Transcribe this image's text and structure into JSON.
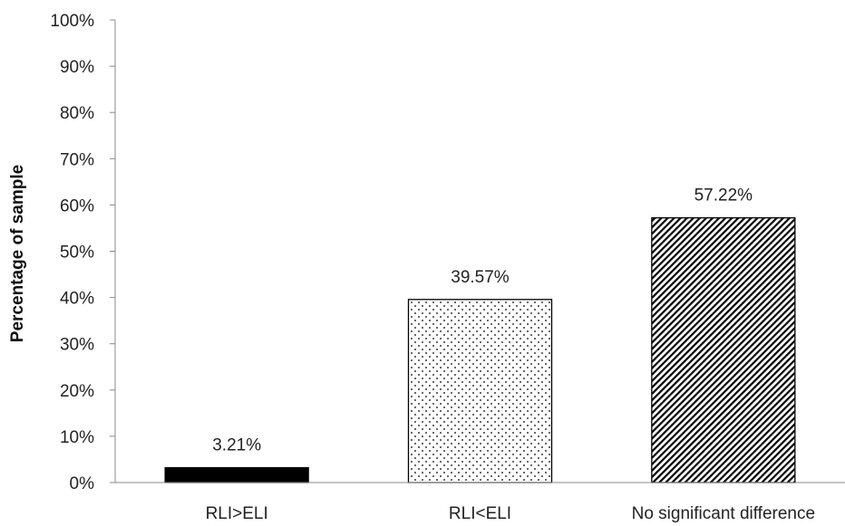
{
  "chart_data": {
    "type": "bar",
    "title": "",
    "xlabel": "",
    "ylabel": "Percentage of sample",
    "ylim": [
      0,
      100
    ],
    "yticks": [
      0,
      10,
      20,
      30,
      40,
      50,
      60,
      70,
      80,
      90,
      100
    ],
    "ytick_suffix": "%",
    "grid": false,
    "categories": [
      "RLI>ELI",
      "RLI<ELI",
      "No significant difference"
    ],
    "values": [
      3.21,
      39.57,
      57.22
    ],
    "data_labels": [
      "3.21%",
      "39.57%",
      "57.22%"
    ],
    "fills": [
      "solid-black",
      "dotted",
      "diagonal-hatch"
    ],
    "colors": {
      "bar_edge": "#000000",
      "solid": "#000000",
      "axis": "#888888",
      "text": "#222222"
    }
  }
}
